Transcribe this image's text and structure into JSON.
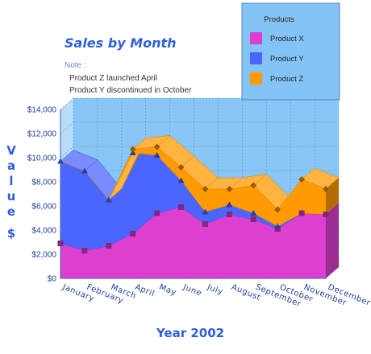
{
  "chart_data": {
    "type": "area",
    "title": "Sales by Month",
    "note": {
      "heading": "Note :",
      "lines": [
        "Product Z launched April",
        "Product Y discontinued in October"
      ]
    },
    "xlabel": "Year 2002",
    "ylabel": "Value $",
    "stacked": true,
    "three_d": true,
    "ylim": [
      0,
      14000
    ],
    "yticks": [
      "$0",
      "$2,000",
      "$4,000",
      "$6,000",
      "$8,000",
      "$10,000",
      "$12,000",
      "$14,000"
    ],
    "categories": [
      "January",
      "February",
      "March",
      "April",
      "May",
      "June",
      "July",
      "August",
      "September",
      "October",
      "November",
      "December"
    ],
    "legend": {
      "title": "Products",
      "position": "top-right"
    },
    "series": [
      {
        "name": "Product X",
        "color": "#dd3fd0",
        "values": [
          2900,
          2300,
          2700,
          3700,
          5400,
          5900,
          4500,
          5300,
          4900,
          4100,
          5400,
          5300
        ]
      },
      {
        "name": "Product Y",
        "color": "#4b66ff",
        "values": [
          6800,
          6600,
          3800,
          6700,
          4800,
          2200,
          1000,
          800,
          500,
          200,
          0,
          0
        ]
      },
      {
        "name": "Product Z",
        "color": "#ff9a00",
        "values": [
          0,
          0,
          0,
          300,
          700,
          1100,
          1900,
          1300,
          2300,
          1400,
          2800,
          2100
        ]
      }
    ],
    "grid": true
  }
}
